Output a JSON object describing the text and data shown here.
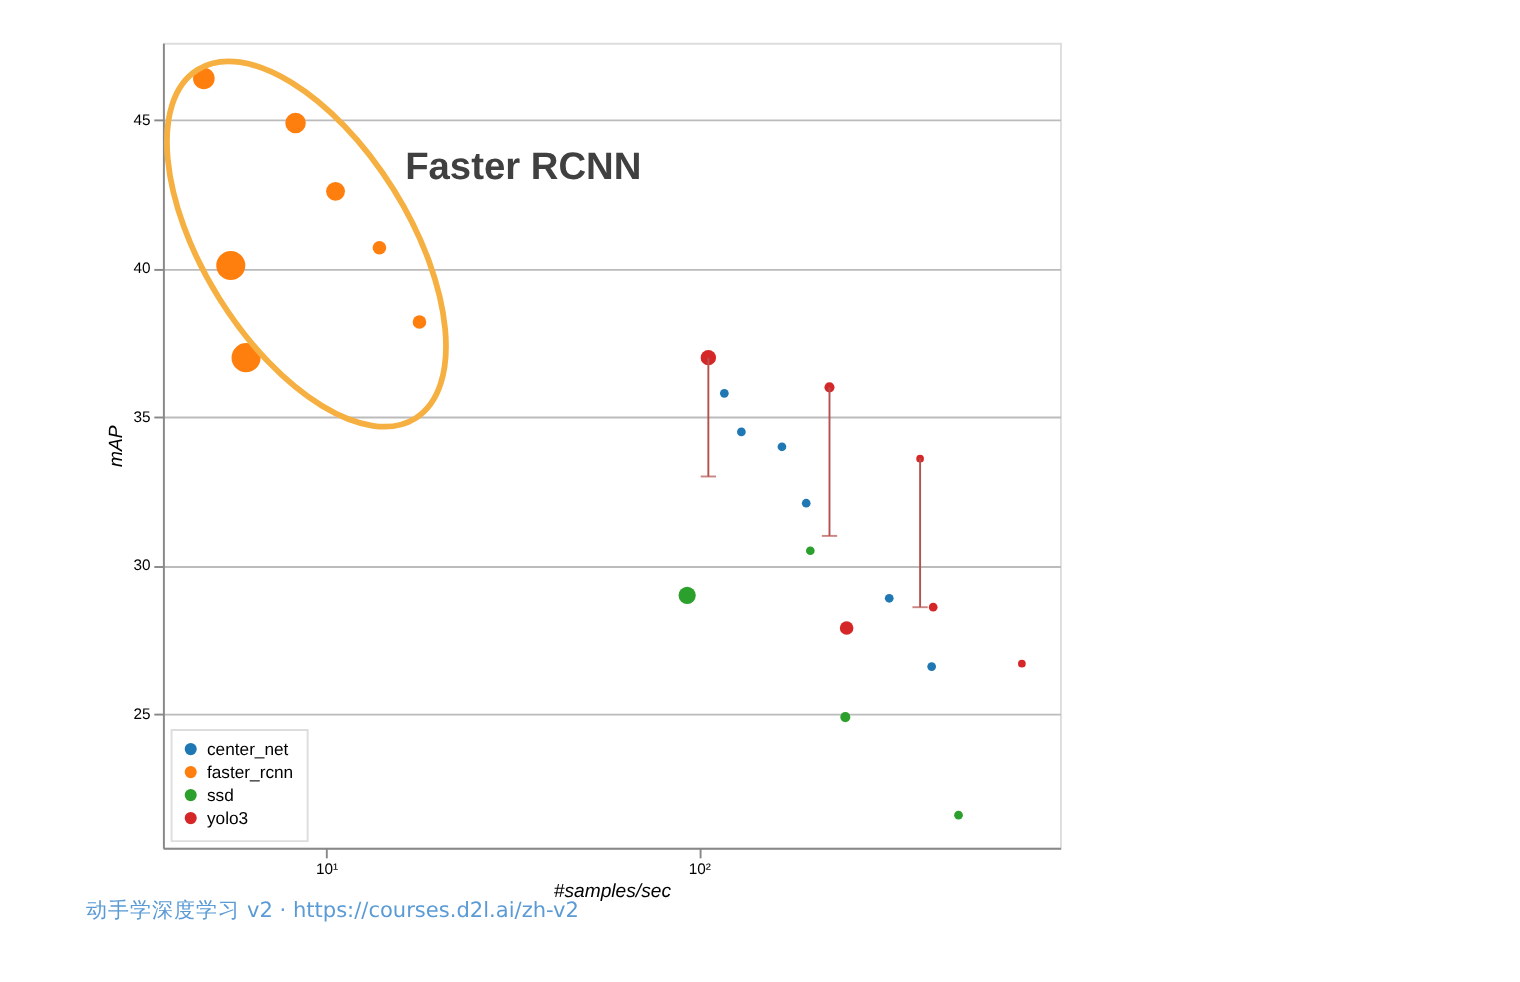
{
  "chart_data": {
    "type": "bubble",
    "xlabel": "#samples/sec",
    "ylabel": "mAP",
    "log": "x",
    "grid": "y",
    "legend": "bottom left",
    "xlim": [
      3.65,
      930
    ],
    "ylim": [
      20.5,
      47.6
    ],
    "xticks": [
      {
        "value": 10,
        "label": "10¹"
      },
      {
        "value": 100,
        "label": "10²"
      }
    ],
    "yticks": [
      25,
      30,
      35,
      40,
      45
    ],
    "series": [
      {
        "name": "center_net",
        "color": "#1f77b4",
        "x": [
          117,
          130,
          167,
          194,
          324,
          421
        ],
        "values": [
          35.8,
          34.5,
          34.0,
          32.1,
          28.9,
          26.6
        ],
        "sizes": [
          0.09,
          0.09,
          0.09,
          0.09,
          0.09,
          0.09
        ]
      },
      {
        "name": "faster_rcnn",
        "color": "#ff7f0e",
        "x": [
          4.7,
          8.28,
          10.6,
          13.9,
          5.55,
          17.8,
          6.1
        ],
        "values": [
          46.4,
          44.9,
          42.6,
          40.7,
          40.1,
          38.2,
          37.0
        ],
        "sizes": [
          0.55,
          0.5,
          0.42,
          0.22,
          1,
          0.22,
          1
        ]
      },
      {
        "name": "ssd",
        "color": "#2ca02c",
        "x": [
          93,
          199,
          247,
          497
        ],
        "values": [
          29.0,
          30.5,
          24.9,
          21.6
        ],
        "sizes": [
          0.35,
          0.09,
          0.12,
          0.09
        ]
      },
      {
        "name": "yolo3",
        "color": "#d62728",
        "x": [
          106,
          224,
          392,
          249,
          425,
          735
        ],
        "values": [
          37.0,
          36.0,
          33.6,
          27.9,
          28.6,
          26.7
        ],
        "sizes": [
          0.28,
          0.12,
          0.07,
          0.22,
          0.09,
          0.07
        ],
        "errors": [
          [
            33.0,
            37.0
          ],
          [
            31.0,
            36.0
          ],
          [
            28.6,
            33.6
          ],
          null,
          null,
          null
        ]
      }
    ],
    "annotations": [
      "Faster RCNN",
      "动手学深度学习 v2 · https://courses.d2l.ai/zh-v2"
    ]
  }
}
